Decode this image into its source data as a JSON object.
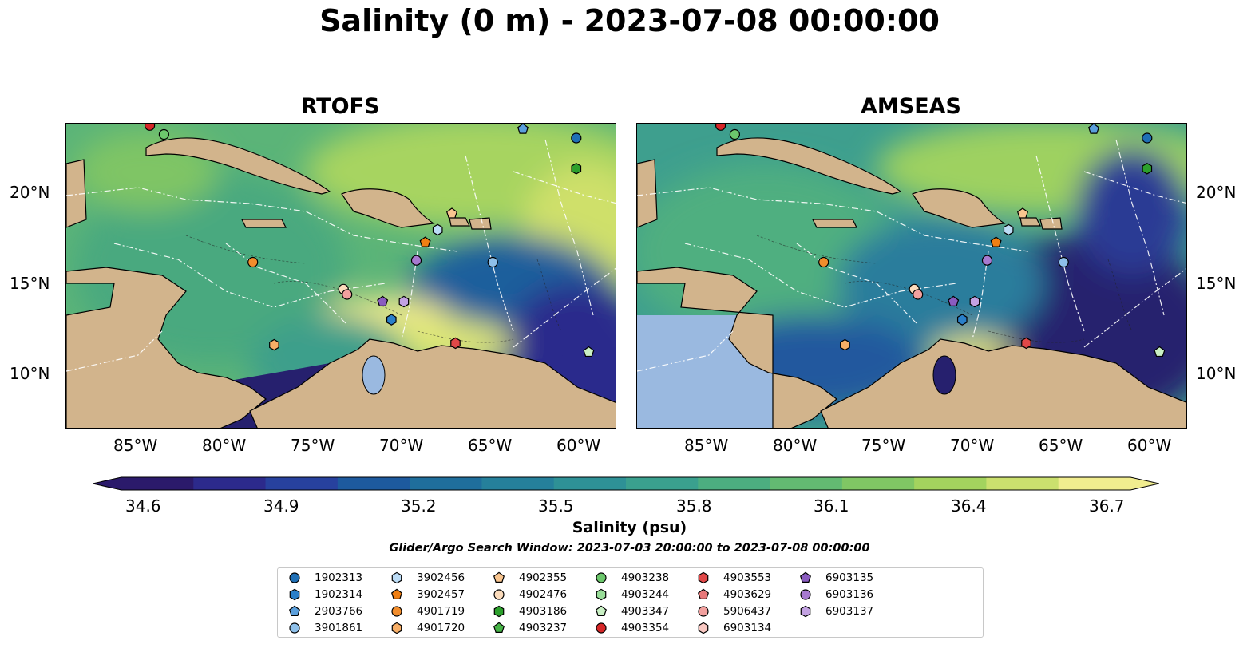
{
  "title": "Salinity (0 m) - 2023-07-08 00:00:00",
  "panels": [
    {
      "title": "RTOFS"
    },
    {
      "title": "AMSEAS"
    }
  ],
  "lat_labels": [
    "20°N",
    "15°N",
    "10°N"
  ],
  "lon_labels": [
    "85°W",
    "80°W",
    "75°W",
    "70°W",
    "65°W",
    "60°W"
  ],
  "colorbar": {
    "label": "Salinity (psu)",
    "min": 34.6,
    "max": 36.7,
    "ticks": [
      "34.6",
      "34.9",
      "35.2",
      "35.5",
      "35.8",
      "36.1",
      "36.4",
      "36.7"
    ],
    "colors": [
      "#2b1a6b",
      "#2c2a8c",
      "#27419e",
      "#1d5a9e",
      "#1f6e9c",
      "#25809b",
      "#2e9196",
      "#3aa08e",
      "#4cae80",
      "#63ba72",
      "#80c664",
      "#a3d35e",
      "#cbe06e",
      "#f1ed8f"
    ]
  },
  "search_window": "Glider/Argo Search Window: 2023-07-03 20:00:00 to 2023-07-08 00:00:00",
  "colors": {
    "land": "#d2b48c",
    "lake": "#9ab9e0",
    "ocean_low": "#26206e"
  },
  "legend": [
    {
      "id": "1902313",
      "marker": "circle",
      "color": "#1f6fb5"
    },
    {
      "id": "1902314",
      "marker": "hexagon",
      "color": "#2a7fc9"
    },
    {
      "id": "2903766",
      "marker": "pentagon",
      "color": "#5a9fdc"
    },
    {
      "id": "3901861",
      "marker": "circle",
      "color": "#8ec0ea"
    },
    {
      "id": "3902456",
      "marker": "hexagon",
      "color": "#bcdcf6"
    },
    {
      "id": "3902457",
      "marker": "pentagon",
      "color": "#f07f13"
    },
    {
      "id": "4901719",
      "marker": "circle",
      "color": "#f28d2c"
    },
    {
      "id": "4901720",
      "marker": "hexagon",
      "color": "#f7ae66"
    },
    {
      "id": "4902355",
      "marker": "pentagon",
      "color": "#f9c58f"
    },
    {
      "id": "4902476",
      "marker": "circle",
      "color": "#fcdcbc"
    },
    {
      "id": "4903186",
      "marker": "hexagon",
      "color": "#2ca02c"
    },
    {
      "id": "4903237",
      "marker": "pentagon",
      "color": "#47b447"
    },
    {
      "id": "4903238",
      "marker": "circle",
      "color": "#6cc76c"
    },
    {
      "id": "4903244",
      "marker": "hexagon",
      "color": "#98dd98"
    },
    {
      "id": "4903347",
      "marker": "pentagon",
      "color": "#c9f0c4"
    },
    {
      "id": "4903354",
      "marker": "circle",
      "color": "#d62728"
    },
    {
      "id": "4903553",
      "marker": "hexagon",
      "color": "#e04848"
    },
    {
      "id": "4903629",
      "marker": "pentagon",
      "color": "#e8787a"
    },
    {
      "id": "5906437",
      "marker": "circle",
      "color": "#f2a09e"
    },
    {
      "id": "6903134",
      "marker": "hexagon",
      "color": "#f9c8c2"
    },
    {
      "id": "6903135",
      "marker": "pentagon",
      "color": "#8a5cc0"
    },
    {
      "id": "6903136",
      "marker": "circle",
      "color": "#a77ad0"
    },
    {
      "id": "6903137",
      "marker": "hexagon",
      "color": "#c3a2e2"
    }
  ],
  "floats": [
    {
      "id": "4903354",
      "lon": -84.3,
      "lat": 23.9
    },
    {
      "id": "4903238",
      "lon": -83.5,
      "lat": 23.4
    },
    {
      "id": "2903766",
      "lon": -63.3,
      "lat": 23.7
    },
    {
      "id": "1902313",
      "lon": -60.3,
      "lat": 23.2
    },
    {
      "id": "4903186",
      "lon": -60.3,
      "lat": 21.5
    },
    {
      "id": "4902355",
      "lon": -67.3,
      "lat": 19.0
    },
    {
      "id": "3902456",
      "lon": -68.1,
      "lat": 18.1
    },
    {
      "id": "3902457",
      "lon": -68.8,
      "lat": 17.4
    },
    {
      "id": "6903136",
      "lon": -69.3,
      "lat": 16.4
    },
    {
      "id": "3901861",
      "lon": -65.0,
      "lat": 16.3
    },
    {
      "id": "4901719",
      "lon": -78.5,
      "lat": 16.3
    },
    {
      "id": "4902476",
      "lon": -73.4,
      "lat": 14.8
    },
    {
      "id": "5906437",
      "lon": -73.2,
      "lat": 14.5
    },
    {
      "id": "6903135",
      "lon": -71.2,
      "lat": 14.1
    },
    {
      "id": "6903137",
      "lon": -70.0,
      "lat": 14.1
    },
    {
      "id": "1902314",
      "lon": -70.7,
      "lat": 13.1
    },
    {
      "id": "4901720",
      "lon": -77.3,
      "lat": 11.7
    },
    {
      "id": "4903553",
      "lon": -67.1,
      "lat": 11.8
    },
    {
      "id": "4903347",
      "lon": -59.6,
      "lat": 11.3
    }
  ]
}
